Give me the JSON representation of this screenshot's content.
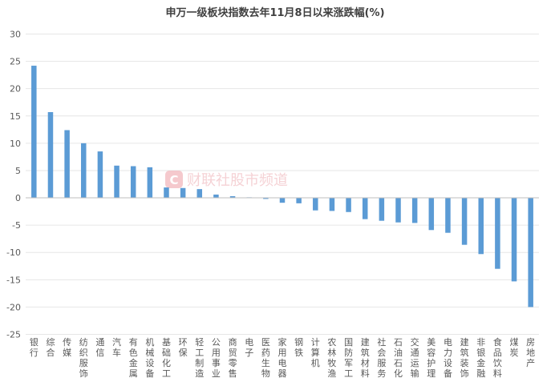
{
  "chart_data": {
    "type": "bar",
    "title": "申万一级板块指数去年11月8日以来涨跌幅(%)",
    "categories": [
      "银行",
      "综合",
      "传媒",
      "纺织服饰",
      "通信",
      "汽车",
      "有色金属",
      "机械设备",
      "基础化工",
      "环保",
      "轻工制造",
      "公用事业",
      "商贸零售",
      "电子",
      "医药生物",
      "家用电器",
      "钢铁",
      "计算机",
      "农林牧渔",
      "国防军工",
      "建筑材料",
      "社会服务",
      "石油石化",
      "交通运输",
      "美容护理",
      "电力设备",
      "建筑装饰",
      "非银金融",
      "食品饮料",
      "煤炭",
      "房地产"
    ],
    "values": [
      24.2,
      15.7,
      12.4,
      10.0,
      8.5,
      5.9,
      5.8,
      5.6,
      1.9,
      1.8,
      1.6,
      0.6,
      0.3,
      0.1,
      -0.2,
      -0.9,
      -1.0,
      -2.3,
      -2.4,
      -2.6,
      -3.9,
      -4.2,
      -4.5,
      -4.6,
      -5.9,
      -6.4,
      -8.6,
      -10.3,
      -13.0,
      -15.3,
      -20.0
    ],
    "ylim": [
      -25,
      30
    ],
    "yticks": [
      30,
      25,
      20,
      15,
      10,
      5,
      0,
      -5,
      -10,
      -15,
      -20,
      -25
    ],
    "grid": true,
    "bar_color": "#5b9bd5"
  },
  "watermark": {
    "icon_letter": "C",
    "text": "财联社股市频道"
  }
}
